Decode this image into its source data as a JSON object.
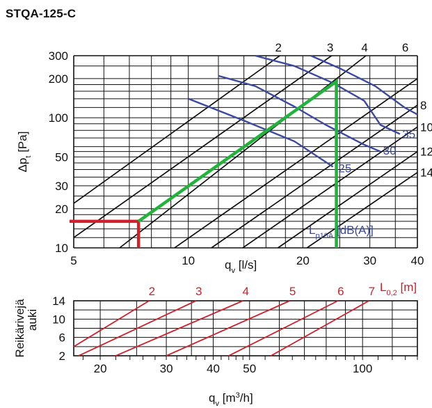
{
  "title": "STQA-125-C",
  "chart_data": [
    {
      "type": "line",
      "name": "pressure",
      "xlabel": "qv [l/s]",
      "xlabel_main": "q",
      "xlabel_sub": "v",
      "xlabel_unit": " [l/s]",
      "ylabel_main": "Δp",
      "ylabel_sub": "t",
      "ylabel_unit": " [Pa]",
      "xscale": "log",
      "yscale": "log",
      "xlim": [
        5,
        40
      ],
      "ylim": [
        10,
        300
      ],
      "x_ticks": [
        5,
        10,
        20,
        30,
        40
      ],
      "y_ticks": [
        10,
        20,
        30,
        50,
        100,
        200,
        300
      ],
      "throw_lines": [
        {
          "label": "2",
          "points": [
            [
              5,
              22
            ],
            [
              17.4,
              300
            ]
          ]
        },
        {
          "label": "3",
          "points": [
            [
              5,
              12
            ],
            [
              23.8,
              300
            ]
          ]
        },
        {
          "label": "4",
          "points": [
            [
              6.6,
              10
            ],
            [
              29.3,
              300
            ]
          ]
        },
        {
          "label": "6",
          "points": [
            [
              9.2,
              10
            ],
            [
              40,
              200
            ]
          ]
        },
        {
          "label": "8",
          "points": [
            [
              11.5,
              10
            ],
            [
              40,
              125
            ]
          ]
        },
        {
          "label": "10",
          "points": [
            [
              13.9,
              10
            ],
            [
              40,
              85
            ]
          ]
        },
        {
          "label": "12",
          "points": [
            [
              17.2,
              10
            ],
            [
              40,
              55
            ]
          ]
        },
        {
          "label": "14",
          "points": [
            [
              20.5,
              10
            ],
            [
              40,
              38
            ]
          ]
        }
      ],
      "rhs_labels": [
        "8",
        "10",
        "12",
        "14"
      ],
      "sound_curves": [
        {
          "label": "25",
          "points": [
            [
              10,
              140
            ],
            [
              14,
              95
            ],
            [
              19,
              66
            ],
            [
              24,
              42
            ]
          ]
        },
        {
          "label": "30",
          "points": [
            [
              12,
              210
            ],
            [
              15,
              175
            ],
            [
              19,
              122
            ],
            [
              23,
              88
            ],
            [
              29,
              62
            ],
            [
              32,
              55
            ]
          ]
        },
        {
          "label": "35",
          "points": [
            [
              15,
              300
            ],
            [
              19,
              250
            ],
            [
              24,
              185
            ],
            [
              29,
              135
            ],
            [
              32,
              88
            ],
            [
              36,
              75
            ]
          ]
        },
        {
          "label": "",
          "points": [
            [
              21,
              300
            ],
            [
              25,
              240
            ],
            [
              31,
              175
            ],
            [
              37,
              120
            ],
            [
              40,
              106
            ]
          ]
        }
      ],
      "sound_label_prefix": "L",
      "sound_label_sub": "p10A",
      "sound_label_unit": " [dB(A)]",
      "example": {
        "flow_ls": 7.4,
        "dp_pa": 16,
        "throw_dp_pa": 190,
        "flow_max_ls": 24.5
      }
    },
    {
      "type": "line",
      "name": "throw",
      "xlabel": "qv [m3/h]",
      "xlabel_main": "q",
      "xlabel_sub": "v",
      "xlabel_unit": " [m",
      "xlabel_sup": "3",
      "xlabel_end": "/h]",
      "ylabel": "Reikärivejä auki",
      "ylabel_line1": "Reikärivejä",
      "ylabel_line2": "auki",
      "xscale": "log",
      "xlim": [
        17,
        140
      ],
      "ylim": [
        2,
        14
      ],
      "x_ticks": [
        20,
        30,
        40,
        50,
        100
      ],
      "y_ticks": [
        2,
        6,
        10,
        14
      ],
      "legend_title_main": "L",
      "legend_title_sub": "0,2",
      "legend_title_unit": " [m]",
      "series": [
        {
          "name": "2",
          "points": [
            [
              17,
              4.0
            ],
            [
              27,
              14
            ]
          ]
        },
        {
          "name": "3",
          "points": [
            [
              17,
              1.5
            ],
            [
              36,
              14
            ]
          ]
        },
        {
          "name": "4",
          "points": [
            [
              22,
              2
            ],
            [
              48,
              14
            ]
          ]
        },
        {
          "name": "5",
          "points": [
            [
              30,
              2
            ],
            [
              64,
              14
            ]
          ]
        },
        {
          "name": "6",
          "points": [
            [
              44,
              2
            ],
            [
              86,
              14
            ]
          ]
        },
        {
          "name": "7",
          "points": [
            [
              57,
              2
            ],
            [
              104,
              14
            ]
          ]
        }
      ]
    }
  ],
  "colors": {
    "blue": "#3b4aa0",
    "red": "#d0202a",
    "green": "#22b33a",
    "grid": "#111111"
  }
}
